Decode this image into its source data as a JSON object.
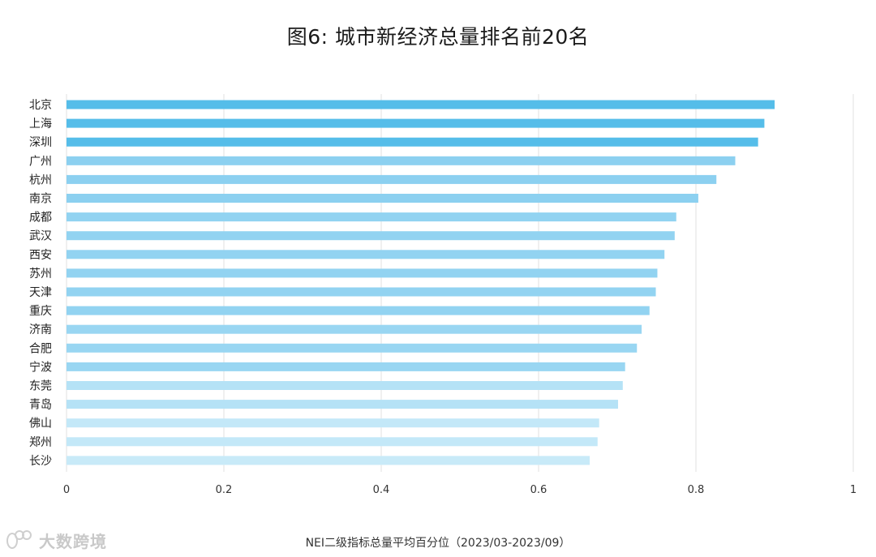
{
  "chart_data": {
    "type": "bar",
    "orientation": "horizontal",
    "title": "图6: 城市新经济总量排名前20名",
    "xlabel": "NEI二级指标总量平均百分位（2023/03-2023/09）",
    "ylabel": "",
    "xlim": [
      0,
      1
    ],
    "xticks": [
      "0",
      "0.2",
      "0.4",
      "0.6",
      "0.8",
      "1"
    ],
    "grid": "vertical",
    "legend": "none",
    "categories": [
      "北京",
      "上海",
      "深圳",
      "广州",
      "杭州",
      "南京",
      "成都",
      "武汉",
      "西安",
      "苏州",
      "天津",
      "重庆",
      "济南",
      "合肥",
      "宁波",
      "东莞",
      "青岛",
      "佛山",
      "郑州",
      "长沙"
    ],
    "values": [
      0.9,
      0.887,
      0.879,
      0.85,
      0.826,
      0.803,
      0.775,
      0.773,
      0.76,
      0.751,
      0.749,
      0.741,
      0.731,
      0.725,
      0.71,
      0.707,
      0.701,
      0.677,
      0.675,
      0.665
    ],
    "bar_colors": [
      "#55bde9",
      "#55bde9",
      "#55bde9",
      "#8cd0f0",
      "#8cd0f0",
      "#8cd0f0",
      "#92d3f1",
      "#92d3f1",
      "#92d3f1",
      "#92d3f1",
      "#92d3f1",
      "#92d3f1",
      "#99d6f2",
      "#99d6f2",
      "#99d6f2",
      "#b5e2f6",
      "#b5e2f6",
      "#c3e8f8",
      "#c3e8f8",
      "#c8eaf8"
    ],
    "gridline_color": "#e2e2e2"
  },
  "watermark": {
    "text": "大数跨境",
    "logo": "daiyun-logo-icon"
  }
}
